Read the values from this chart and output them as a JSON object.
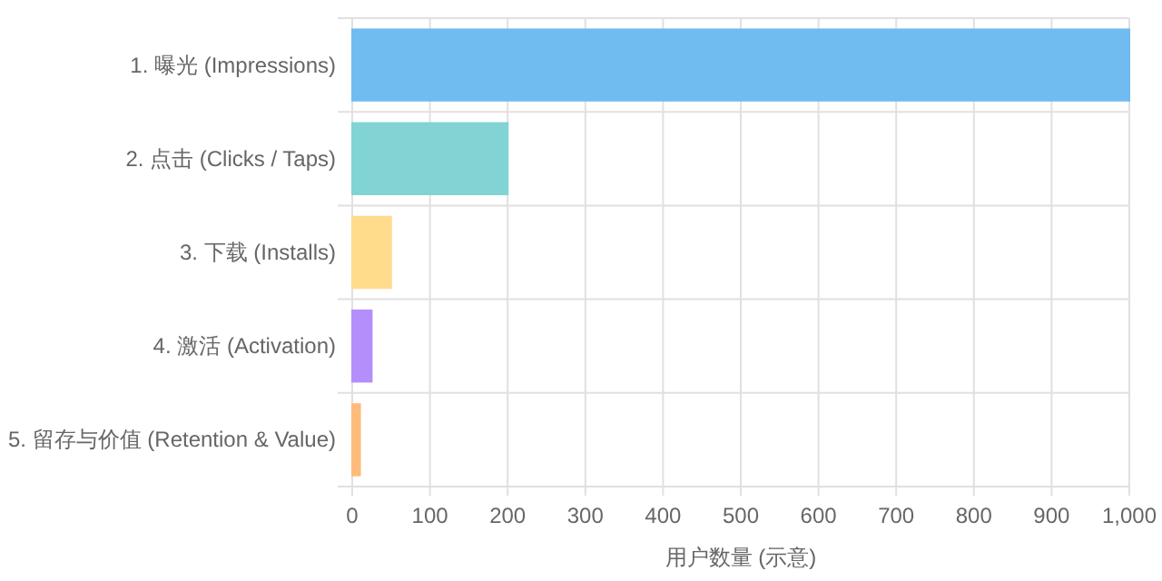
{
  "chart_data": {
    "type": "bar",
    "orientation": "horizontal",
    "categories": [
      "1. 曝光 (Impressions)",
      "2. 点击 (Clicks / Taps)",
      "3. 下载 (Installs)",
      "4. 激活 (Activation)",
      "5. 留存与价值 (Retention & Value)"
    ],
    "values": [
      1000,
      200,
      50,
      25,
      10
    ],
    "colors": [
      "#70bcf0",
      "#82d3d3",
      "#ffdb8c",
      "#b48efa",
      "#ffbb7a"
    ],
    "xlabel": "用户数量 (示意)",
    "xlim": [
      0,
      1000
    ],
    "xticks": [
      0,
      100,
      200,
      300,
      400,
      500,
      600,
      700,
      800,
      900,
      {
        "value": 1000,
        "label": "1,000"
      }
    ],
    "grid": true
  }
}
